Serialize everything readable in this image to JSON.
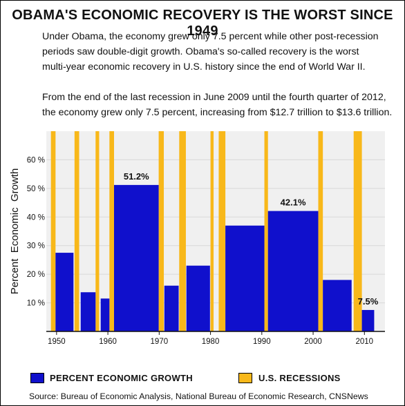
{
  "title": "OBAMA'S  ECONOMIC  RECOVERY  IS THE WORST SINCE 1949",
  "intro_lines": [
    "Under Obama, the economy grew only 7.5 percent while other post-recession",
    "periods saw double-digit growth.  Obama's so-called recovery is the worst",
    "multi-year economic recovery in U.S. history since the end of World War II."
  ],
  "detail_lines": [
    "From the end of the last recession in June 2009 until the fourth quarter of 2012,",
    "the economy grew only 7.5 percent, increasing from $12.7 trillion to $13.6 trillion."
  ],
  "legend": {
    "growth_label": "PERCENT  ECONOMIC  GROWTH",
    "recession_label": "U.S.  RECESSIONS"
  },
  "source": "Source: Bureau of Economic Analysis, National Bureau of Economic Research, CNSNews",
  "colors": {
    "growth": "#1010cc",
    "recession": "#f8b81a",
    "plot_bg": "#f0f0f0"
  },
  "chart_data": {
    "type": "bar",
    "ylabel": "Percent  Economic  Growth",
    "xlim": [
      1948,
      2014
    ],
    "ylim": [
      0,
      70
    ],
    "y_ticks": [
      10,
      20,
      30,
      40,
      50,
      60
    ],
    "y_tick_labels": [
      "10 %",
      "20 %",
      "30 %",
      "40 %",
      "50 %",
      "60 %"
    ],
    "x_ticks": [
      1950,
      1960,
      1970,
      1980,
      1990,
      2000,
      2010
    ],
    "x_tick_labels": [
      "1950",
      "1960",
      "1970",
      "1980",
      "1990",
      "2000",
      "2010"
    ],
    "series": [
      {
        "name": "PERCENT  ECONOMIC  GROWTH",
        "bars": [
          {
            "start": 1949.8,
            "end": 1953.3,
            "value": 27.5,
            "label": ""
          },
          {
            "start": 1954.7,
            "end": 1957.6,
            "value": 13.7,
            "label": ""
          },
          {
            "start": 1958.6,
            "end": 1960.3,
            "value": 11.5,
            "label": ""
          },
          {
            "start": 1961.2,
            "end": 1969.9,
            "value": 51.2,
            "label": "51.2%"
          },
          {
            "start": 1971.0,
            "end": 1973.8,
            "value": 16.0,
            "label": ""
          },
          {
            "start": 1975.3,
            "end": 1979.9,
            "value": 23.0,
            "label": ""
          },
          {
            "start": 1982.9,
            "end": 1990.5,
            "value": 37.0,
            "label": ""
          },
          {
            "start": 1991.2,
            "end": 2001.0,
            "value": 42.1,
            "label": "42.1%"
          },
          {
            "start": 2001.9,
            "end": 2007.5,
            "value": 18.0,
            "label": ""
          },
          {
            "start": 2009.5,
            "end": 2011.9,
            "value": 7.5,
            "label": "7.5%"
          }
        ]
      },
      {
        "name": "U.S.  RECESSIONS",
        "periods": [
          [
            1948.9,
            1949.8
          ],
          [
            1953.5,
            1954.4
          ],
          [
            1957.6,
            1958.3
          ],
          [
            1960.3,
            1961.2
          ],
          [
            1969.9,
            1970.9
          ],
          [
            1973.9,
            1975.2
          ],
          [
            1980.0,
            1980.6
          ],
          [
            1981.6,
            1982.9
          ],
          [
            1990.5,
            1991.2
          ],
          [
            2001.0,
            2001.9
          ],
          [
            2007.9,
            2009.5
          ]
        ]
      }
    ]
  }
}
